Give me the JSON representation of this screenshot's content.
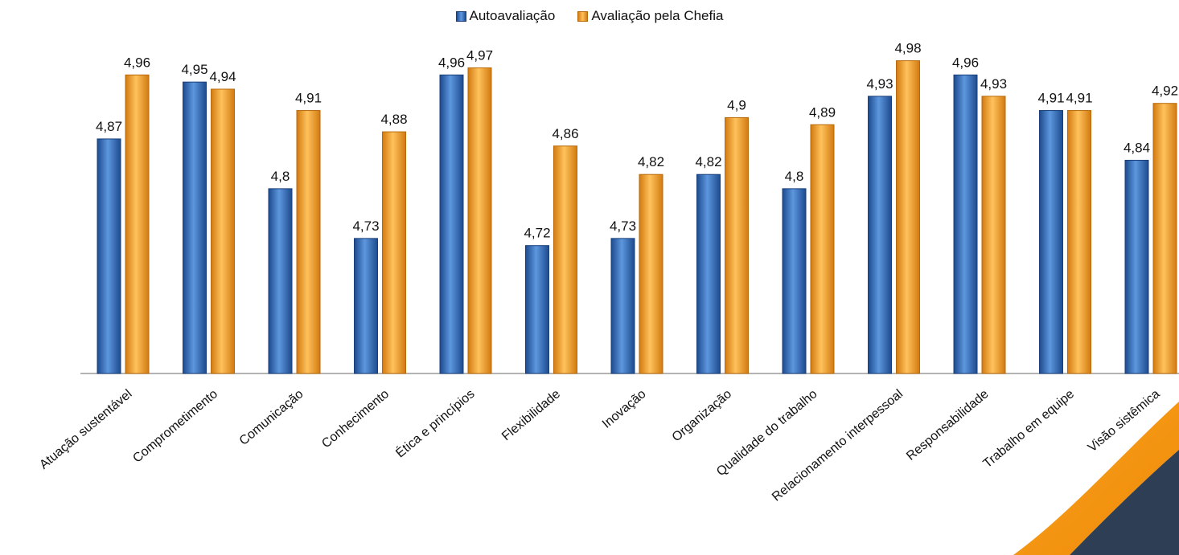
{
  "chart_data": {
    "type": "bar",
    "categories": [
      "Atuação sustentável",
      "Comprometimento",
      "Comunicação",
      "Conhecimento",
      "Ética e princípios",
      "Flexibilidade",
      "Inovação",
      "Organização",
      "Qualidade do trabalho",
      "Relacionamento interpessoal",
      "Responsabilidade",
      "Trabalho em equipe",
      "Visão sistêmica"
    ],
    "series": [
      {
        "name": "Autoavaliação",
        "color": "#3b78c8",
        "values": [
          4.87,
          4.95,
          4.8,
          4.73,
          4.96,
          4.72,
          4.73,
          4.82,
          4.8,
          4.93,
          4.96,
          4.91,
          4.84
        ],
        "labels": [
          "4,87",
          "4,95",
          "4,8",
          "4,73",
          "4,96",
          "4,72",
          "4,73",
          "4,82",
          "4,8",
          "4,93",
          "4,96",
          "4,91",
          "4,84"
        ]
      },
      {
        "name": "Avaliação pela Chefia",
        "color": "#f39a2a",
        "values": [
          4.96,
          4.94,
          4.91,
          4.88,
          4.97,
          4.86,
          4.82,
          4.9,
          4.89,
          4.98,
          4.93,
          4.91,
          4.92
        ],
        "labels": [
          "4,96",
          "4,94",
          "4,91",
          "4,88",
          "4,97",
          "4,86",
          "4,82",
          "4,9",
          "4,89",
          "4,98",
          "4,93",
          "4,91",
          "4,92"
        ]
      }
    ],
    "legend_position": "top-center",
    "grid": false
  }
}
